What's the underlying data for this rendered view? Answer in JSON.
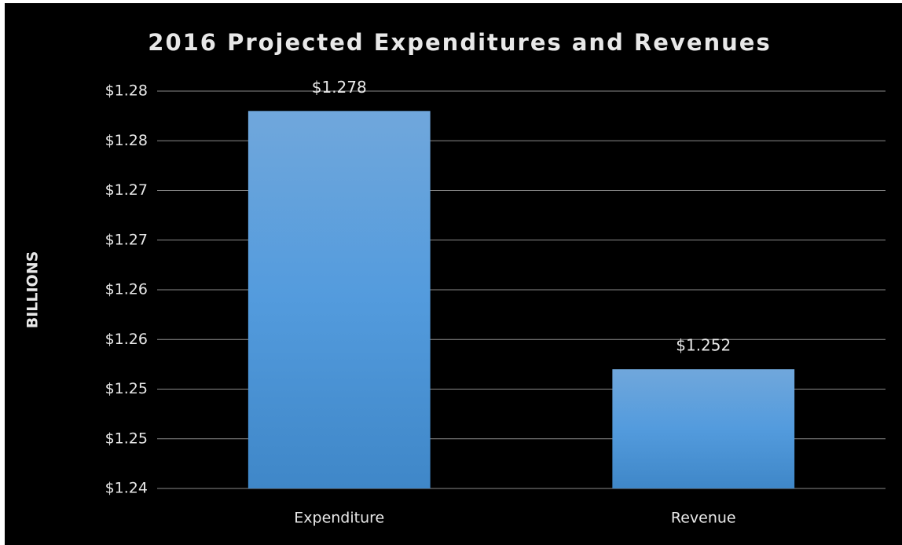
{
  "chart_data": {
    "type": "bar",
    "title": "2016 Projected Expenditures and Revenues",
    "ylabel": "BILLIONS",
    "categories": [
      "Expenditure",
      "Revenue"
    ],
    "values": [
      1.278,
      1.252
    ],
    "value_labels": [
      "$1.278",
      "$1.252"
    ],
    "color": "url(#barGrad)",
    "ylim": [
      1.24,
      1.28
    ],
    "yticks": [
      {
        "value": 1.24,
        "label": "$1.24"
      },
      {
        "value": 1.245,
        "label": "$1.25"
      },
      {
        "value": 1.25,
        "label": "$1.25"
      },
      {
        "value": 1.255,
        "label": "$1.26"
      },
      {
        "value": 1.26,
        "label": "$1.26"
      },
      {
        "value": 1.265,
        "label": "$1.27"
      },
      {
        "value": 1.27,
        "label": "$1.27"
      },
      {
        "value": 1.275,
        "label": "$1.28"
      },
      {
        "value": 1.28,
        "label": "$1.28"
      }
    ],
    "grid": true
  }
}
